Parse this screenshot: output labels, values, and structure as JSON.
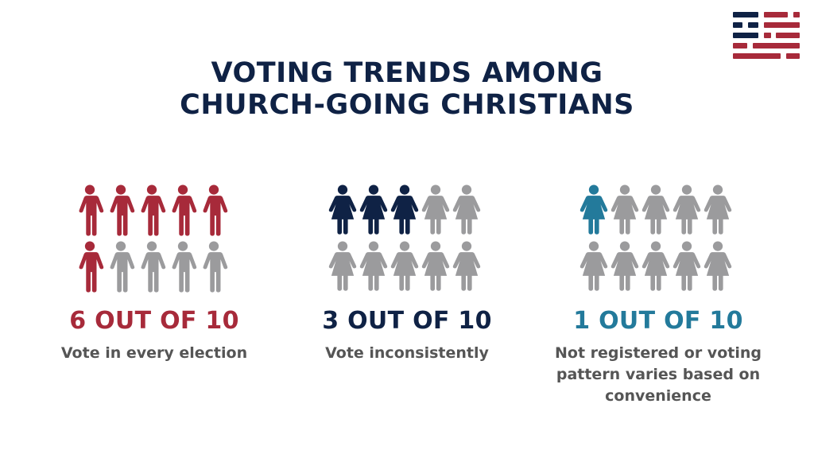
{
  "logo": {
    "name": "flag-logo",
    "colors": {
      "navy": "#0f2245",
      "red": "#a72a3a"
    }
  },
  "title": {
    "line1": "VOTING TRENDS AMONG",
    "line2": "CHURCH-GOING CHRISTIANS"
  },
  "panels": [
    {
      "stat": "6 OUT OF 10",
      "desc_lines": [
        "Vote in every election"
      ],
      "highlight": 6,
      "total": 10,
      "color": "#a72a3a",
      "icon": "male-person-icon"
    },
    {
      "stat": "3 OUT OF 10",
      "desc_lines": [
        "Vote inconsistently"
      ],
      "highlight": 3,
      "total": 10,
      "color": "#0f2245",
      "icon": "female-person-icon"
    },
    {
      "stat": "1 OUT OF 10",
      "desc_lines": [
        "Not registered or voting",
        "pattern varies based on",
        "convenience"
      ],
      "highlight": 1,
      "total": 10,
      "color": "#237a9b",
      "icon": "female-person-icon"
    }
  ],
  "colors": {
    "inactive": "#9b9b9d",
    "title": "#0f2245",
    "desc": "#555555"
  },
  "chart_data": {
    "type": "pictogram",
    "title": "VOTING TRENDS AMONG CHURCH-GOING CHRISTIANS",
    "categories": [
      "Vote in every election",
      "Vote inconsistently",
      "Not registered or voting pattern varies based on convenience"
    ],
    "values": [
      6,
      3,
      1
    ],
    "total_per_category": 10,
    "labels": [
      "6 OUT OF 10",
      "3 OUT OF 10",
      "1 OUT OF 10"
    ],
    "colors": [
      "#a72a3a",
      "#0f2245",
      "#237a9b"
    ]
  }
}
